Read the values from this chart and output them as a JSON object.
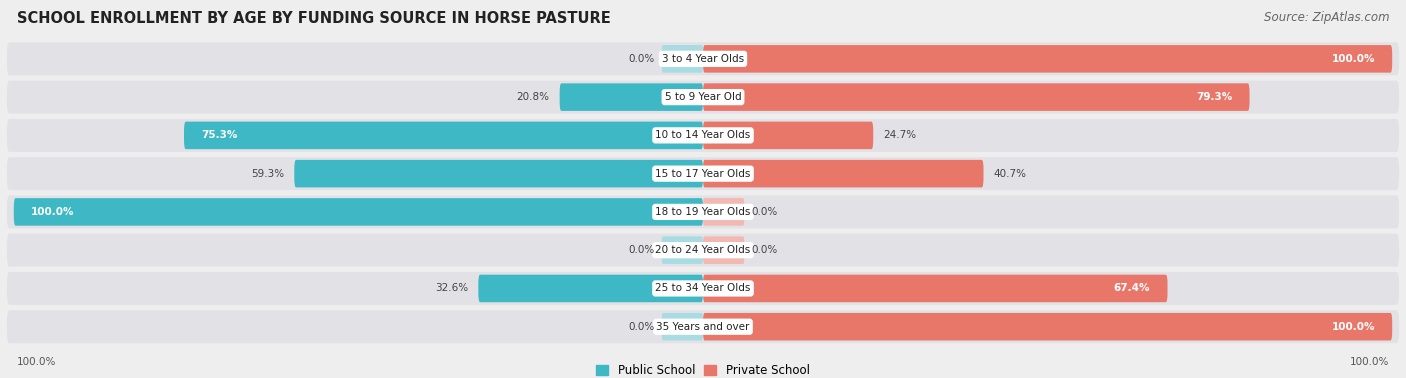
{
  "title": "SCHOOL ENROLLMENT BY AGE BY FUNDING SOURCE IN HORSE PASTURE",
  "source": "Source: ZipAtlas.com",
  "categories": [
    "3 to 4 Year Olds",
    "5 to 9 Year Old",
    "10 to 14 Year Olds",
    "15 to 17 Year Olds",
    "18 to 19 Year Olds",
    "20 to 24 Year Olds",
    "25 to 34 Year Olds",
    "35 Years and over"
  ],
  "public_values": [
    0.0,
    20.8,
    75.3,
    59.3,
    100.0,
    0.0,
    32.6,
    0.0
  ],
  "private_values": [
    100.0,
    79.3,
    24.7,
    40.7,
    0.0,
    0.0,
    67.4,
    100.0
  ],
  "public_color": "#3db8c4",
  "private_color": "#e8776a",
  "public_color_light": "#a8dce2",
  "private_color_light": "#f2b8b2",
  "bg_color": "#eeeeee",
  "bar_bg_color": "#e2e2e6",
  "title_fontsize": 10.5,
  "label_fontsize": 7.5,
  "source_fontsize": 8.5,
  "legend_fontsize": 8.5,
  "cat_label_fontsize": 7.5
}
